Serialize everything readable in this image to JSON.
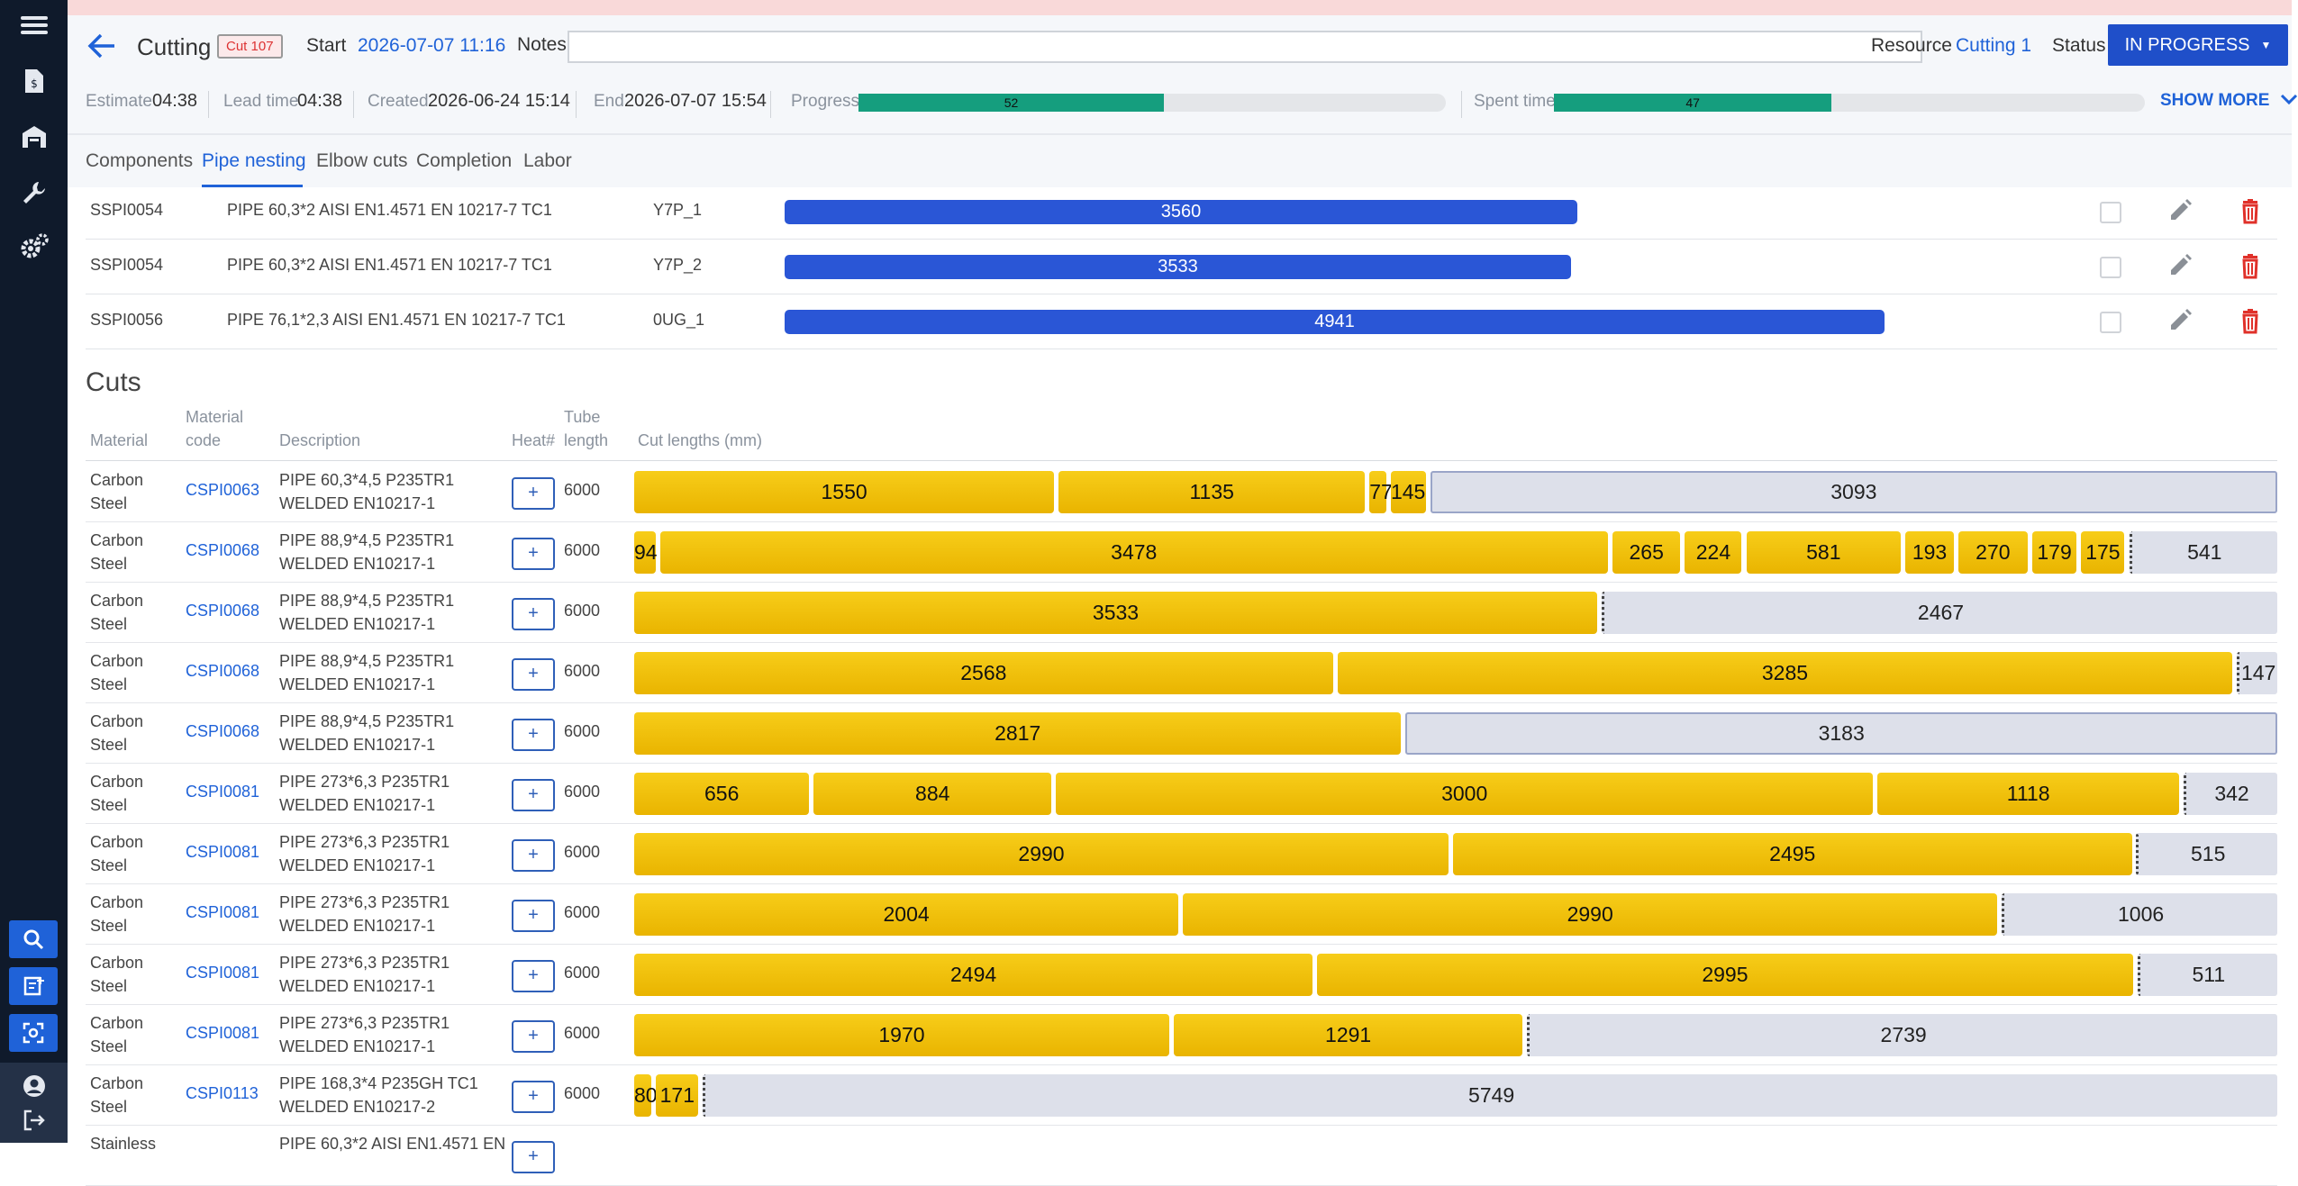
{
  "header": {
    "title": "Cutting",
    "badge": "Cut 107",
    "start_label": "Start",
    "start_value": "2026-07-07 11:16",
    "notes_label": "Notes",
    "notes_value": "",
    "resource_label": "Resource",
    "resource_value": "Cutting 1",
    "status_label": "Status",
    "status_value": "IN PROGRESS",
    "estimate_label": "Estimate",
    "estimate_value": "04:38",
    "lead_label": "Lead time",
    "lead_value": "04:38",
    "created_label": "Created",
    "created_value": "2026-06-24 15:14",
    "end_label": "End",
    "end_value": "2026-07-07 15:54",
    "progress_label": "Progress",
    "progress_value": 52,
    "spent_label": "Spent time",
    "spent_value": 47,
    "show_more": "SHOW MORE"
  },
  "tabs": [
    "Components",
    "Pipe nesting",
    "Elbow cuts",
    "Completion",
    "Labor"
  ],
  "active_tab": 1,
  "nesting_rows": [
    {
      "code": "SSPI0054",
      "desc": "PIPE 60,3*2 AISI EN1.4571 EN 10217-7 TC1",
      "id": "Y7P_1",
      "length": "3560"
    },
    {
      "code": "SSPI0054",
      "desc": "PIPE 60,3*2 AISI EN1.4571 EN 10217-7 TC1",
      "id": "Y7P_2",
      "length": "3533"
    },
    {
      "code": "SSPI0056",
      "desc": "PIPE 76,1*2,3 AISI EN1.4571 EN 10217-7 TC1",
      "id": "0UG_1",
      "length": "4941"
    }
  ],
  "cuts": {
    "title": "Cuts",
    "columns": {
      "material": "Material",
      "code_1": "Material",
      "code_2": "code",
      "description": "Description",
      "heat": "Heat#",
      "tube_1": "Tube",
      "tube_2": "length",
      "cut_lengths": "Cut lengths (mm)"
    },
    "plus_label": "+",
    "rows": [
      {
        "mat1": "Carbon",
        "mat2": "Steel",
        "code": "CSPI0063",
        "d1": "PIPE 60,3*4,5 P235TR1",
        "d2": "WELDED EN10217-1",
        "tube": "6000",
        "cuts": [
          1550,
          1135,
          77,
          145
        ],
        "remainder": 3093,
        "rem_style": "bordered"
      },
      {
        "mat1": "Carbon",
        "mat2": "Steel",
        "code": "CSPI0068",
        "d1": "PIPE 88,9*4,5 P235TR1",
        "d2": "WELDED EN10217-1",
        "tube": "6000",
        "cuts": [
          94,
          3478,
          265,
          224,
          581,
          193,
          270,
          179,
          175
        ],
        "remainder": 541,
        "rem_style": "dotted"
      },
      {
        "mat1": "Carbon",
        "mat2": "Steel",
        "code": "CSPI0068",
        "d1": "PIPE 88,9*4,5 P235TR1",
        "d2": "WELDED EN10217-1",
        "tube": "6000",
        "cuts": [
          3533
        ],
        "remainder": 2467,
        "rem_style": "dotted"
      },
      {
        "mat1": "Carbon",
        "mat2": "Steel",
        "code": "CSPI0068",
        "d1": "PIPE 88,9*4,5 P235TR1",
        "d2": "WELDED EN10217-1",
        "tube": "6000",
        "cuts": [
          2568,
          3285
        ],
        "remainder": 147,
        "rem_style": "dotted"
      },
      {
        "mat1": "Carbon",
        "mat2": "Steel",
        "code": "CSPI0068",
        "d1": "PIPE 88,9*4,5 P235TR1",
        "d2": "WELDED EN10217-1",
        "tube": "6000",
        "cuts": [
          2817
        ],
        "remainder": 3183,
        "rem_style": "bordered"
      },
      {
        "mat1": "Carbon",
        "mat2": "Steel",
        "code": "CSPI0081",
        "d1": "PIPE 273*6,3 P235TR1",
        "d2": "WELDED EN10217-1",
        "tube": "6000",
        "cuts": [
          656,
          884,
          3000,
          1118
        ],
        "remainder": 342,
        "rem_style": "dotted"
      },
      {
        "mat1": "Carbon",
        "mat2": "Steel",
        "code": "CSPI0081",
        "d1": "PIPE 273*6,3 P235TR1",
        "d2": "WELDED EN10217-1",
        "tube": "6000",
        "cuts": [
          2990,
          2495
        ],
        "remainder": 515,
        "rem_style": "dotted"
      },
      {
        "mat1": "Carbon",
        "mat2": "Steel",
        "code": "CSPI0081",
        "d1": "PIPE 273*6,3 P235TR1",
        "d2": "WELDED EN10217-1",
        "tube": "6000",
        "cuts": [
          2004,
          2990
        ],
        "remainder": 1006,
        "rem_style": "dotted"
      },
      {
        "mat1": "Carbon",
        "mat2": "Steel",
        "code": "CSPI0081",
        "d1": "PIPE 273*6,3 P235TR1",
        "d2": "WELDED EN10217-1",
        "tube": "6000",
        "cuts": [
          2494,
          2995
        ],
        "remainder": 511,
        "rem_style": "dotted"
      },
      {
        "mat1": "Carbon",
        "mat2": "Steel",
        "code": "CSPI0081",
        "d1": "PIPE 273*6,3 P235TR1",
        "d2": "WELDED EN10217-1",
        "tube": "6000",
        "cuts": [
          1970,
          1291
        ],
        "remainder": 2739,
        "rem_style": "dotted"
      },
      {
        "mat1": "Carbon",
        "mat2": "Steel",
        "code": "CSPI0113",
        "d1": "PIPE 168,3*4 P235GH TC1",
        "d2": "WELDED EN10217-2",
        "tube": "6000",
        "cuts": [
          80,
          171
        ],
        "remainder": 5749,
        "rem_style": "dotted"
      },
      {
        "mat1": "Stainless",
        "mat2": "",
        "code": "",
        "d1": "PIPE 60,3*2 AISI EN1.4571 EN",
        "d2": "",
        "tube": "",
        "cuts": [],
        "remainder": null,
        "rem_style": "none"
      }
    ]
  },
  "icons": {
    "sidebar": [
      "menu-icon",
      "document-icon",
      "warehouse-icon",
      "wrench-icon",
      "gears-icon",
      "search-icon",
      "new-note-icon",
      "scan-icon",
      "user-icon",
      "logout-icon"
    ]
  }
}
